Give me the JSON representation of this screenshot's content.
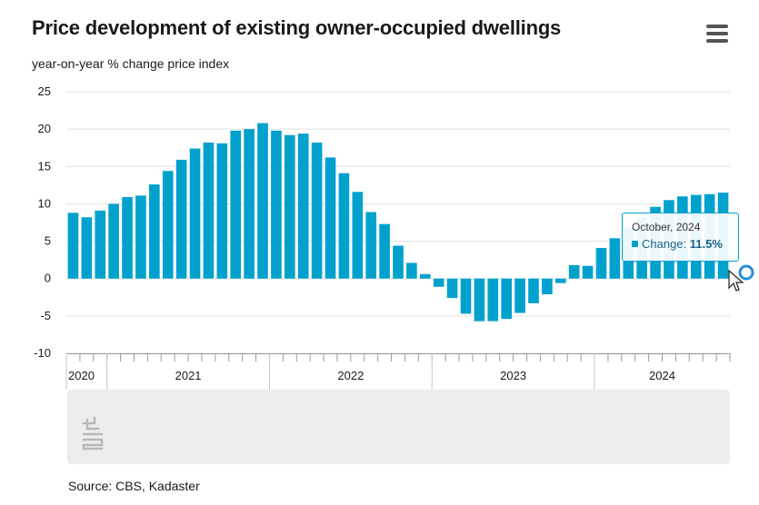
{
  "header": {
    "title": "Price development of existing owner-occupied dwellings",
    "menu_icon": "hamburger-menu-icon"
  },
  "chart_data": {
    "type": "bar",
    "title": "Price development of existing owner-occupied dwellings",
    "ylabel": "year-on-year % change price index",
    "xlabel": "",
    "ylim": [
      -10,
      25
    ],
    "yticks": [
      25,
      20,
      15,
      10,
      5,
      0,
      -5,
      -10
    ],
    "grid": true,
    "bar_color": "#00a1cd",
    "categories": [
      "Oct 2020",
      "Nov 2020",
      "Dec 2020",
      "Jan 2021",
      "Feb 2021",
      "Mar 2021",
      "Apr 2021",
      "May 2021",
      "Jun 2021",
      "Jul 2021",
      "Aug 2021",
      "Sep 2021",
      "Oct 2021",
      "Nov 2021",
      "Dec 2021",
      "Jan 2022",
      "Feb 2022",
      "Mar 2022",
      "Apr 2022",
      "May 2022",
      "Jun 2022",
      "Jul 2022",
      "Aug 2022",
      "Sep 2022",
      "Oct 2022",
      "Nov 2022",
      "Dec 2022",
      "Jan 2023",
      "Feb 2023",
      "Mar 2023",
      "Apr 2023",
      "May 2023",
      "Jun 2023",
      "Jul 2023",
      "Aug 2023",
      "Sep 2023",
      "Oct 2023",
      "Nov 2023",
      "Dec 2023",
      "Jan 2024",
      "Feb 2024",
      "Mar 2024",
      "Apr 2024",
      "May 2024",
      "Jun 2024",
      "Jul 2024",
      "Aug 2024",
      "Sep 2024",
      "Oct 2024"
    ],
    "values": [
      8.8,
      8.2,
      9.1,
      10.0,
      10.9,
      11.1,
      12.6,
      14.4,
      15.9,
      17.4,
      18.2,
      18.1,
      19.8,
      20.0,
      20.8,
      19.8,
      19.2,
      19.4,
      18.2,
      16.2,
      14.1,
      11.6,
      8.9,
      7.3,
      4.4,
      2.1,
      0.6,
      -1.1,
      -2.6,
      -4.7,
      -5.7,
      -5.7,
      -5.4,
      -4.6,
      -3.3,
      -2.1,
      -0.6,
      1.8,
      1.7,
      4.1,
      5.4,
      6.8,
      8.2,
      9.6,
      10.5,
      11.0,
      11.2,
      11.3,
      11.5
    ],
    "x_tick_labels": [
      "2020",
      "2021",
      "2022",
      "2023",
      "2024"
    ],
    "highlighted_index": 48
  },
  "tooltip": {
    "date": "October, 2024",
    "series_label": "Change: ",
    "value": "11.5%"
  },
  "navigator": {
    "logo_icon": "cbs-logo-icon"
  },
  "footer": {
    "source": "Source: CBS, Kadaster"
  }
}
